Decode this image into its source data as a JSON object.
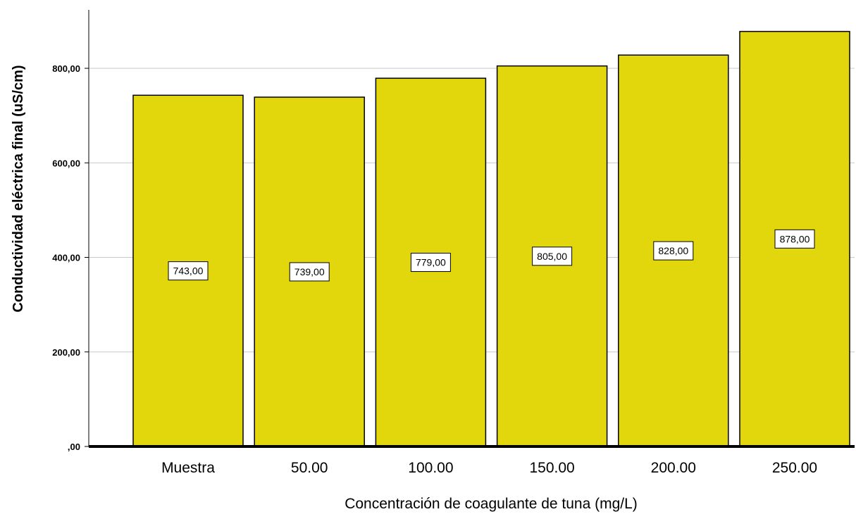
{
  "chart_data": {
    "type": "bar",
    "categories": [
      "Muestra",
      "50.00",
      "100.00",
      "150.00",
      "200.00",
      "250.00"
    ],
    "values": [
      743,
      739,
      779,
      805,
      828,
      878
    ],
    "value_labels": [
      "743,00",
      "739,00",
      "779,00",
      "805,00",
      "828,00",
      "878,00"
    ],
    "title": "",
    "xlabel": "Concentración de coagulante de tuna (mg/L)",
    "ylabel": "Conductividad eléctrica final (uS/cm)",
    "ylim": [
      0,
      900
    ],
    "yticks": [
      0,
      200,
      400,
      600,
      800
    ],
    "ytick_labels": [
      ",00",
      "200,00",
      "400,00",
      "600,00",
      "800,00"
    ],
    "grid": true,
    "bar_color": "#E2D60D",
    "bar_edge_color": "#000000",
    "gridline_color": "#c8c8c8"
  }
}
